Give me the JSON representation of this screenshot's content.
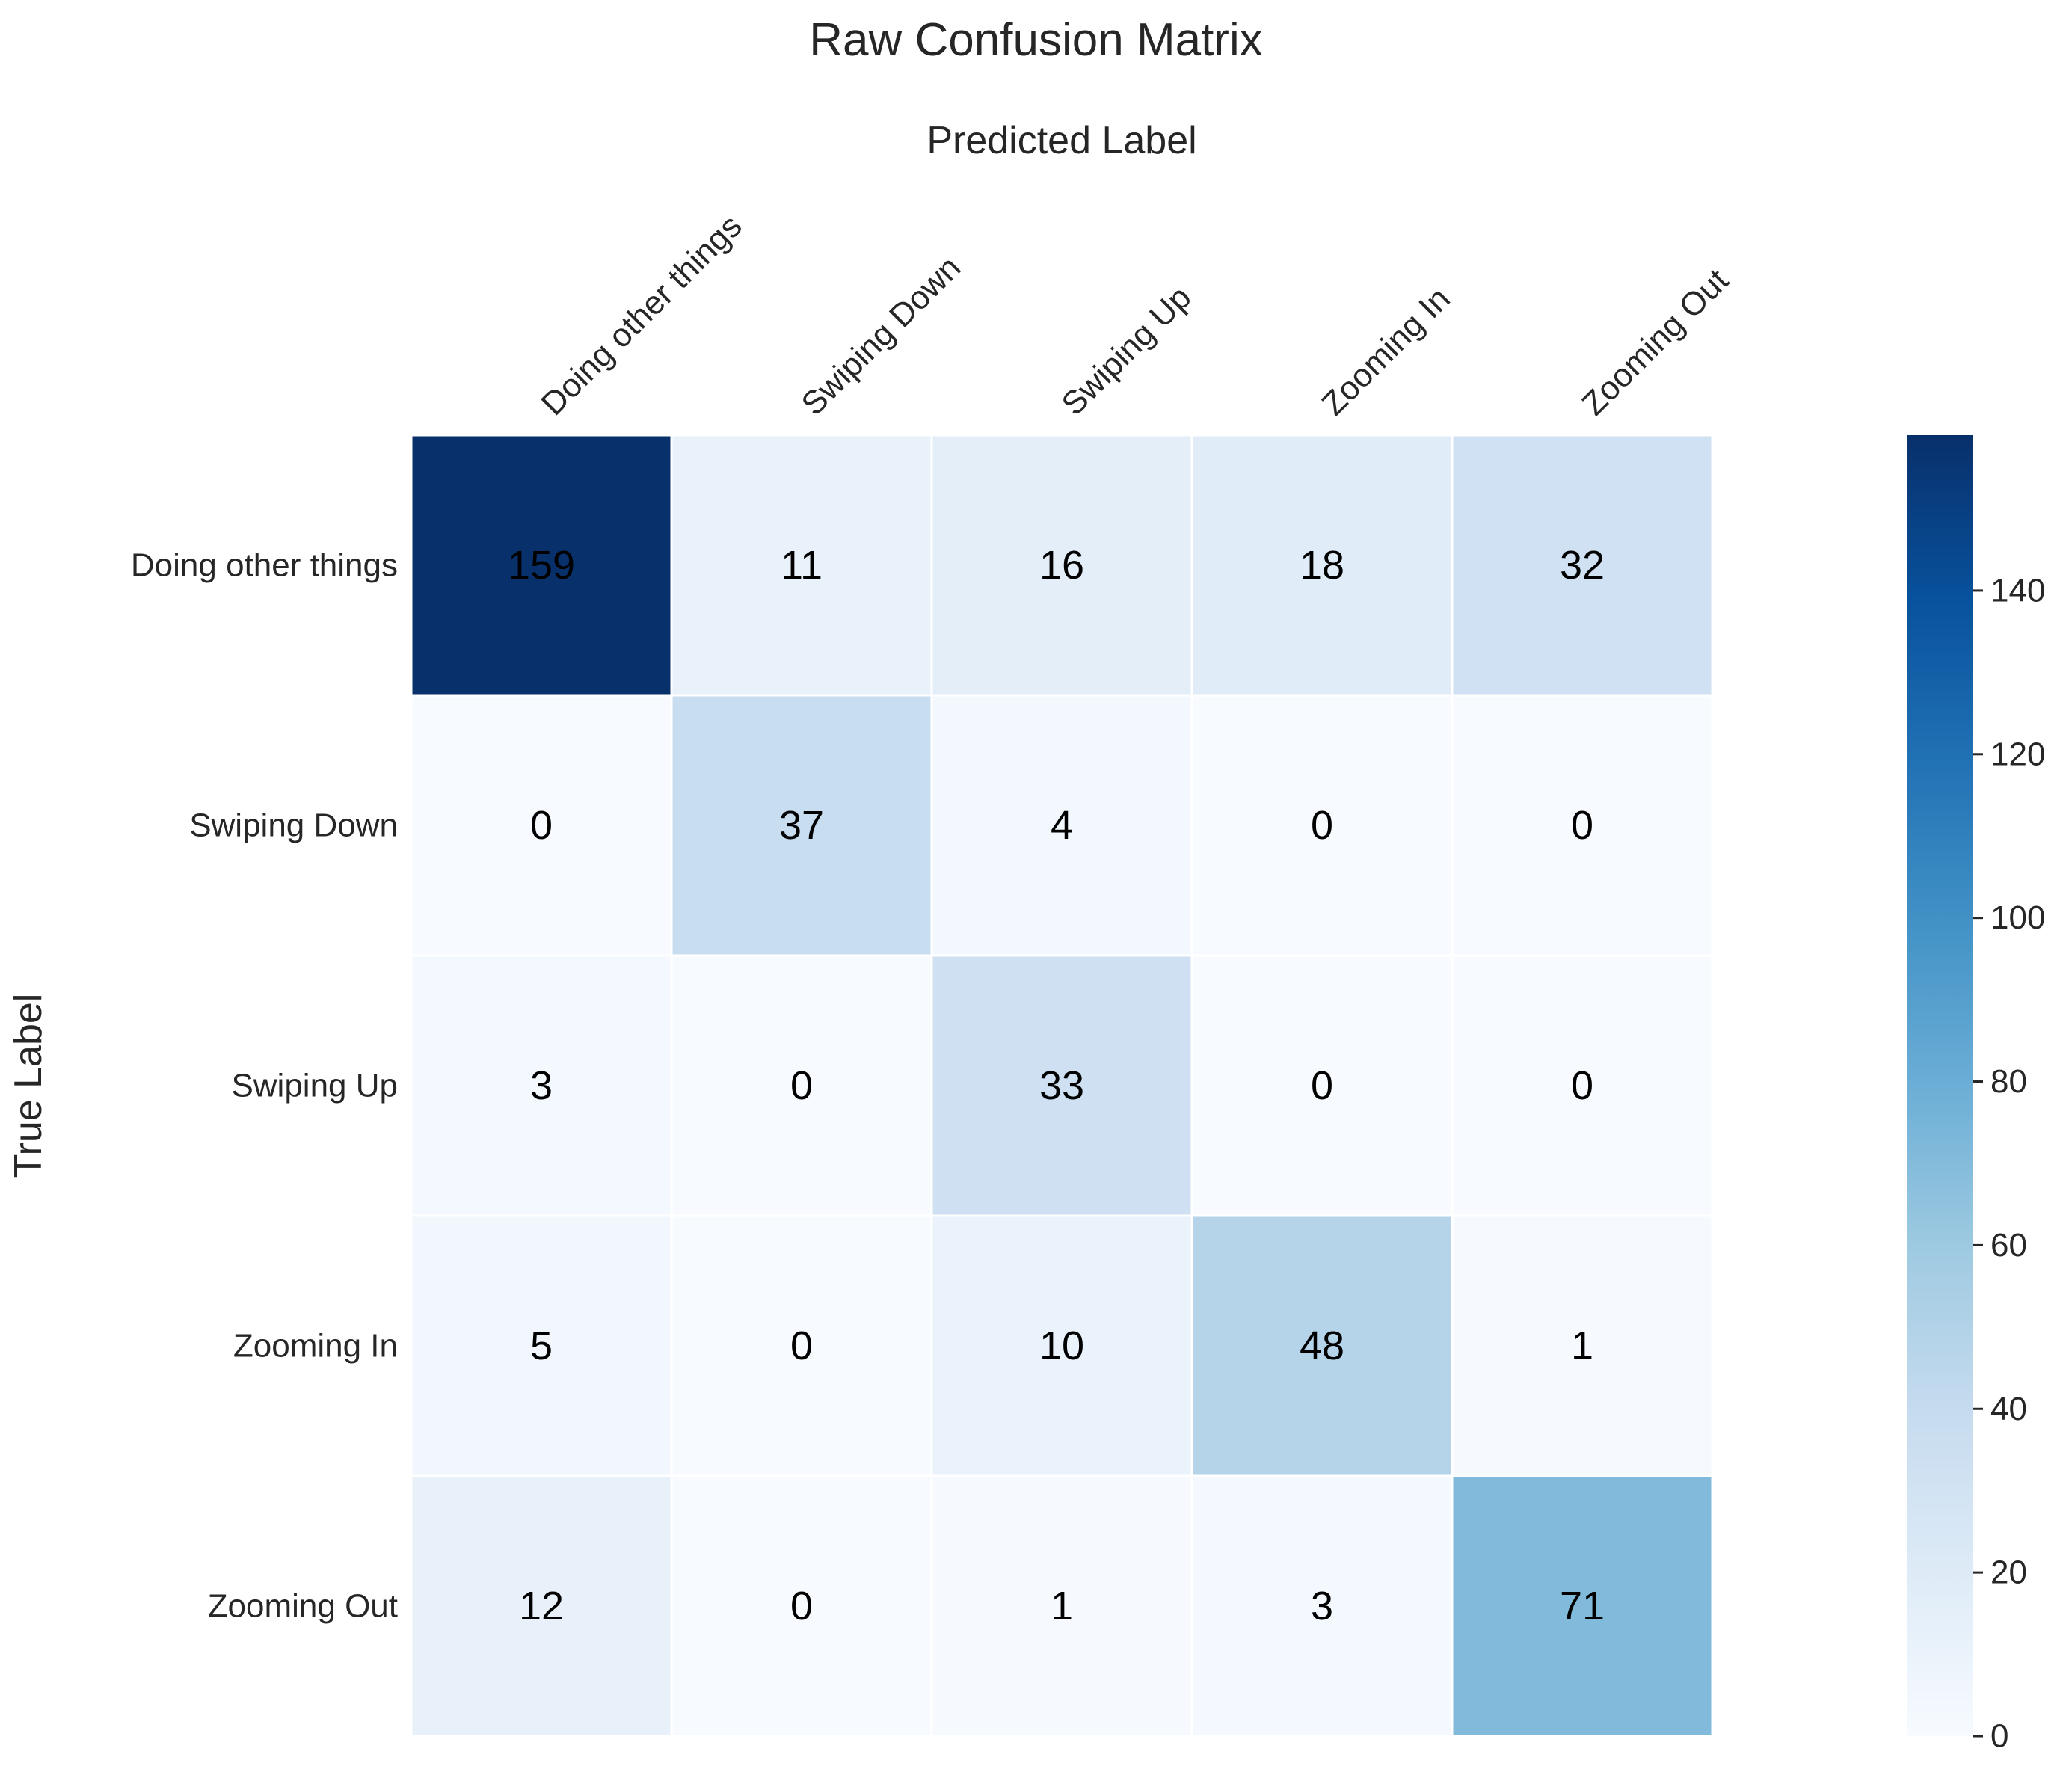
{
  "chart_data": {
    "type": "heatmap",
    "title": "Raw Confusion Matrix",
    "xlabel": "Predicted Label",
    "ylabel": "True Label",
    "x_categories": [
      "Doing other things",
      "Swiping Down",
      "Swiping Up",
      "Zooming In",
      "Zooming Out"
    ],
    "y_categories": [
      "Doing other things",
      "Swiping Down",
      "Swiping Up",
      "Zooming In",
      "Zooming Out"
    ],
    "values": [
      [
        159,
        11,
        16,
        18,
        32
      ],
      [
        0,
        37,
        4,
        0,
        0
      ],
      [
        3,
        0,
        33,
        0,
        0
      ],
      [
        5,
        0,
        10,
        48,
        1
      ],
      [
        12,
        0,
        1,
        3,
        71
      ]
    ],
    "value_range": [
      0,
      159
    ],
    "colormap": "Blues",
    "colorbar": {
      "ticks": [
        0,
        20,
        40,
        60,
        80,
        100,
        120,
        140
      ],
      "tick_labels": [
        "0",
        "20",
        "40",
        "60",
        "80",
        "100",
        "120",
        "140"
      ],
      "placement": "right"
    },
    "x_tick_position": "top",
    "grid": false
  }
}
